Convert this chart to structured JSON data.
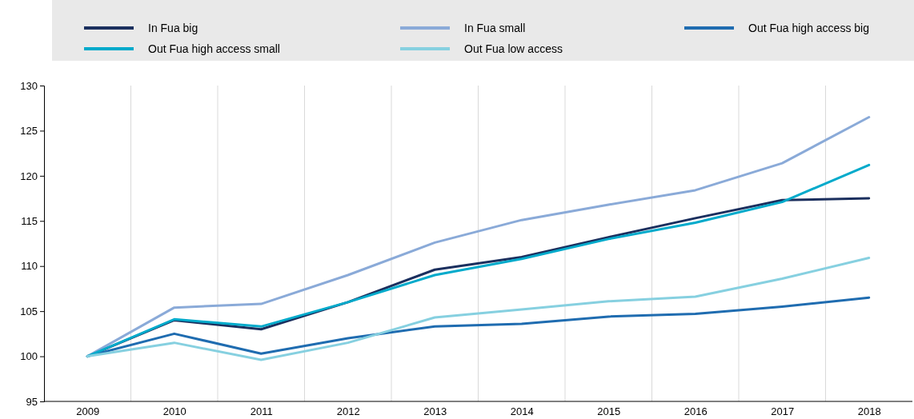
{
  "chart_data": {
    "type": "line",
    "categories": [
      "2009",
      "2010",
      "2011",
      "2012",
      "2013",
      "2014",
      "2015",
      "2016",
      "2017",
      "2018"
    ],
    "ylim": [
      95,
      130
    ],
    "yticks": [
      95,
      100,
      105,
      110,
      115,
      120,
      125,
      130
    ],
    "grid": "x",
    "legend": "top",
    "line_style": "solid",
    "marker": "none",
    "series": [
      {
        "name": "In Fua big",
        "color": "#1b2f5e",
        "values": [
          100,
          104.0,
          103.0,
          106.0,
          109.6,
          111.0,
          113.2,
          115.3,
          117.3,
          117.5
        ]
      },
      {
        "name": "In Fua small",
        "color": "#8aaad8",
        "values": [
          100,
          105.4,
          105.8,
          109.0,
          112.6,
          115.1,
          116.8,
          118.4,
          121.4,
          126.5
        ]
      },
      {
        "name": "Out Fua high access big",
        "color": "#1f6cb0",
        "values": [
          100,
          102.5,
          100.3,
          102.0,
          103.3,
          103.6,
          104.4,
          104.7,
          105.5,
          106.5
        ]
      },
      {
        "name": "Out Fua high access small",
        "color": "#00aacb",
        "values": [
          100,
          104.1,
          103.3,
          106.0,
          109.0,
          110.8,
          113.0,
          114.8,
          117.1,
          121.2
        ]
      },
      {
        "name": "Out Fua low access",
        "color": "#86d0e0",
        "values": [
          100,
          101.5,
          99.6,
          101.5,
          104.3,
          105.2,
          106.1,
          106.6,
          108.6,
          110.9
        ]
      }
    ]
  }
}
